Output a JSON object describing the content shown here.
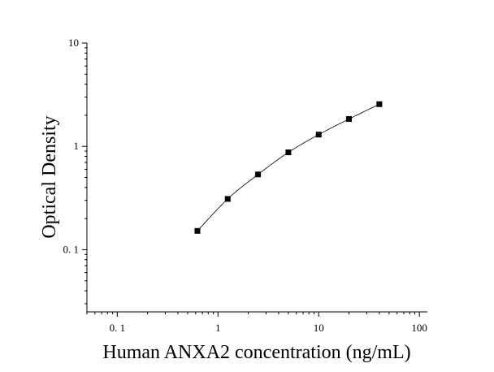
{
  "chart_data": {
    "type": "scatter",
    "title": "",
    "xlabel": "Human ANXA2 concentration (ng/mL)",
    "ylabel": "Optical Density",
    "xscale": "log",
    "yscale": "log",
    "xlim": [
      0.05,
      120
    ],
    "ylim": [
      0.025,
      10
    ],
    "x_ticks": [
      {
        "value": 0.1,
        "label": "0. 1"
      },
      {
        "value": 1,
        "label": "1"
      },
      {
        "value": 10,
        "label": "10"
      },
      {
        "value": 100,
        "label": "100"
      }
    ],
    "y_ticks": [
      {
        "value": 0.1,
        "label": "0. 1"
      },
      {
        "value": 1,
        "label": "1"
      },
      {
        "value": 10,
        "label": "10"
      }
    ],
    "grid": false,
    "legend": "none",
    "fit_line": true,
    "series": [
      {
        "x": [
          0.625,
          1.25,
          2.5,
          5,
          10,
          20,
          40
        ],
        "y": [
          0.152,
          0.31,
          0.535,
          0.875,
          1.3,
          1.84,
          2.56
        ],
        "marker": "square",
        "color": "#000000"
      }
    ]
  }
}
